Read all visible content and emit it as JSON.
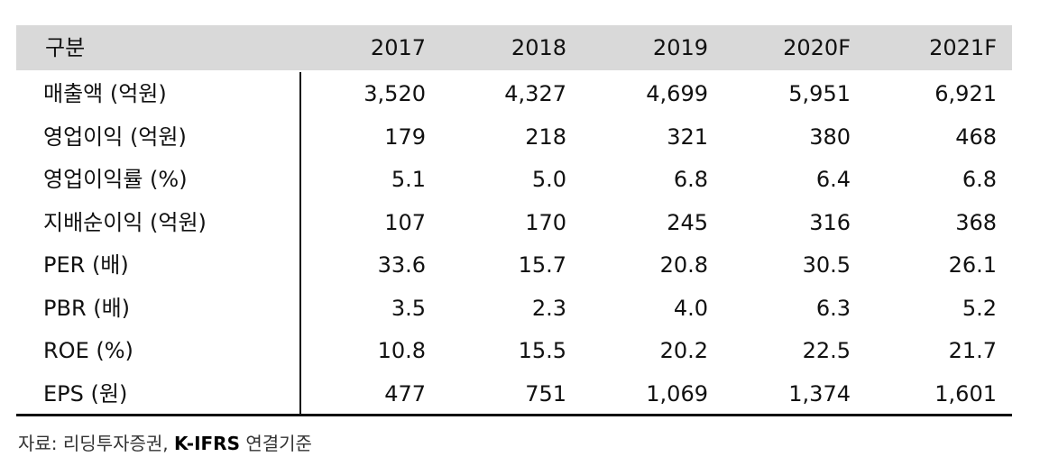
{
  "table": {
    "header": [
      "구분",
      "2017",
      "2018",
      "2019",
      "2020F",
      "2021F"
    ],
    "rows": [
      [
        "매출액 (억원)",
        "3,520",
        "4,327",
        "4,699",
        "5,951",
        "6,921"
      ],
      [
        "영업이익 (억원)",
        "179",
        "218",
        "321",
        "380",
        "468"
      ],
      [
        "영업이익률 (%)",
        "5.1",
        "5.0",
        "6.8",
        "6.4",
        "6.8"
      ],
      [
        "지배순이익 (억원)",
        "107",
        "170",
        "245",
        "316",
        "368"
      ],
      [
        "PER (배)",
        "33.6",
        "15.7",
        "20.8",
        "30.5",
        "26.1"
      ],
      [
        "PBR (배)",
        "3.5",
        "2.3",
        "4.0",
        "6.3",
        "5.2"
      ],
      [
        "ROE (%)",
        "10.8",
        "15.5",
        "20.2",
        "22.5",
        "21.7"
      ],
      [
        "EPS (원)",
        "477",
        "751",
        "1,069",
        "1,374",
        "1,601"
      ]
    ]
  },
  "source": {
    "prefix": "자료: 리딩투자증권,",
    "bold": "K-IFRS",
    "suffix": "연결기준"
  }
}
